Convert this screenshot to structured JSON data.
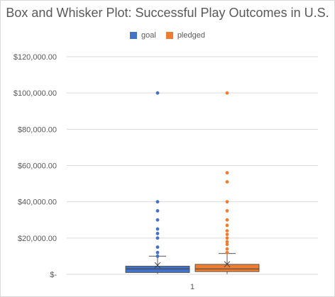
{
  "chart_data": {
    "type": "box",
    "title": "Box and Whisker Plot: Successful Play Outcomes in U.S.",
    "categories": [
      "1"
    ],
    "y_ticks": [
      "$120,000.00",
      "$100,000.00",
      "$80,000.00",
      "$60,000.00",
      "$40,000.00",
      "$20,000.00",
      "$-"
    ],
    "ylim": [
      0,
      120000
    ],
    "grid": true,
    "legend_position": "top",
    "series": [
      {
        "name": "goal",
        "color": "#4472c4",
        "min": 0,
        "q1": 1000,
        "median": 3000,
        "q3": 4500,
        "whisker_high": 10000,
        "mean": 5000,
        "outliers": [
          10000,
          12000,
          15000,
          20000,
          22500,
          25000,
          30000,
          35000,
          40000,
          100000
        ]
      },
      {
        "name": "pledged",
        "color": "#ed7d31",
        "min": 0,
        "q1": 1500,
        "median": 3000,
        "q3": 5500,
        "whisker_high": 11500,
        "mean": 5600,
        "outliers": [
          12000,
          14000,
          16500,
          18000,
          20000,
          22000,
          24000,
          27000,
          30000,
          35000,
          40000,
          51000,
          56000,
          100000
        ]
      }
    ]
  }
}
